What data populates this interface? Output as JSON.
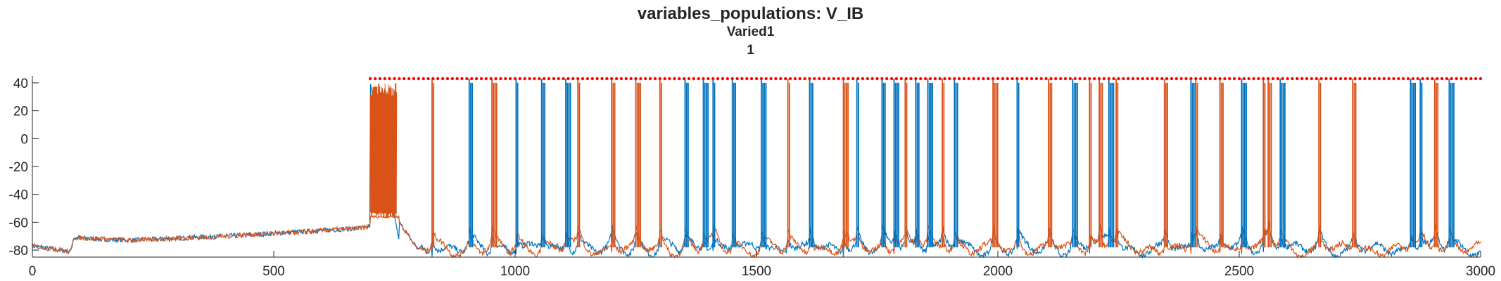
{
  "chart_data": {
    "type": "line",
    "title": "variables_populations: V_IB",
    "subtitle": "Varied1",
    "subtitle2": "1",
    "xlabel": "",
    "ylabel": "",
    "xlim": [
      0,
      3000
    ],
    "ylim": [
      -85,
      45
    ],
    "xticks": [
      0,
      500,
      1000,
      1500,
      2000,
      2500,
      3000
    ],
    "yticks": [
      -80,
      -60,
      -40,
      -20,
      0,
      20,
      40
    ],
    "grid": false,
    "colors": {
      "blue": "#0072BD",
      "orange": "#D95319",
      "red": "#FF0000",
      "axis": "#262626"
    },
    "baseline": [
      [
        0,
        -77
      ],
      [
        80,
        -81
      ],
      [
        85,
        -71
      ],
      [
        200,
        -73
      ],
      [
        400,
        -70
      ],
      [
        550,
        -67
      ],
      [
        690,
        -64
      ],
      [
        700,
        -62
      ]
    ],
    "burst_segment": {
      "x_start": 700,
      "x_end": 755,
      "top": 40,
      "bottom": -57,
      "color": "orange"
    },
    "spikes": [
      {
        "x": 828,
        "series": "orange"
      },
      {
        "x": 905,
        "series": "blue"
      },
      {
        "x": 952,
        "series": "orange"
      },
      {
        "x": 1002,
        "series": "blue"
      },
      {
        "x": 1055,
        "series": "blue"
      },
      {
        "x": 1105,
        "series": "blue"
      },
      {
        "x": 1130,
        "series": "orange"
      },
      {
        "x": 1200,
        "series": "orange"
      },
      {
        "x": 1250,
        "series": "orange"
      },
      {
        "x": 1300,
        "series": "orange"
      },
      {
        "x": 1352,
        "series": "blue"
      },
      {
        "x": 1390,
        "series": "blue"
      },
      {
        "x": 1410,
        "series": "blue"
      },
      {
        "x": 1450,
        "series": "blue"
      },
      {
        "x": 1510,
        "series": "blue"
      },
      {
        "x": 1565,
        "series": "orange"
      },
      {
        "x": 1610,
        "series": "blue"
      },
      {
        "x": 1680,
        "series": "orange"
      },
      {
        "x": 1708,
        "series": "blue"
      },
      {
        "x": 1760,
        "series": "blue"
      },
      {
        "x": 1785,
        "series": "blue"
      },
      {
        "x": 1808,
        "series": "orange"
      },
      {
        "x": 1830,
        "series": "blue"
      },
      {
        "x": 1855,
        "series": "blue"
      },
      {
        "x": 1885,
        "series": "orange"
      },
      {
        "x": 1910,
        "series": "blue"
      },
      {
        "x": 1990,
        "series": "orange"
      },
      {
        "x": 2040,
        "series": "blue"
      },
      {
        "x": 2105,
        "series": "orange"
      },
      {
        "x": 2155,
        "series": "blue"
      },
      {
        "x": 2190,
        "series": "orange"
      },
      {
        "x": 2210,
        "series": "orange"
      },
      {
        "x": 2230,
        "series": "blue"
      },
      {
        "x": 2245,
        "series": "orange"
      },
      {
        "x": 2345,
        "series": "orange"
      },
      {
        "x": 2400,
        "series": "blue"
      },
      {
        "x": 2410,
        "series": "orange"
      },
      {
        "x": 2460,
        "series": "orange"
      },
      {
        "x": 2505,
        "series": "blue"
      },
      {
        "x": 2550,
        "series": "orange"
      },
      {
        "x": 2560,
        "series": "orange"
      },
      {
        "x": 2585,
        "series": "blue"
      },
      {
        "x": 2665,
        "series": "orange"
      },
      {
        "x": 2735,
        "series": "orange"
      },
      {
        "x": 2855,
        "series": "blue"
      },
      {
        "x": 2875,
        "series": "blue"
      },
      {
        "x": 2905,
        "series": "orange"
      },
      {
        "x": 2935,
        "series": "blue"
      }
    ],
    "raster_level": 43,
    "raster_x_start": 700,
    "raster_x_end": 3000,
    "raster_step": 10
  }
}
